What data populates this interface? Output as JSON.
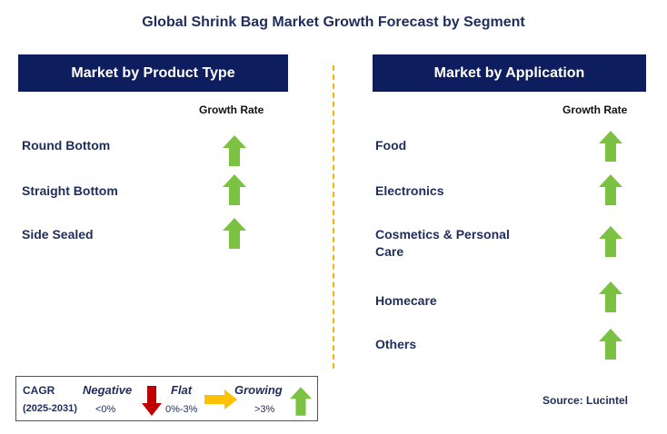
{
  "title": "Global Shrink Bag Market Growth Forecast by Segment",
  "colors": {
    "header_bg": "#0e1d5e",
    "growing": "#7cc242",
    "negative": "#c00000",
    "flat": "#ffc000",
    "divider": "#f2b705"
  },
  "left_panel": {
    "header": "Market by Product Type",
    "growth_rate_label": "Growth Rate",
    "items": [
      {
        "label": "Round Bottom",
        "trend": "growing"
      },
      {
        "label": "Straight Bottom",
        "trend": "growing"
      },
      {
        "label": "Side Sealed",
        "trend": "growing"
      }
    ]
  },
  "right_panel": {
    "header": "Market by Application",
    "growth_rate_label": "Growth Rate",
    "items": [
      {
        "label": "Food",
        "trend": "growing"
      },
      {
        "label": "Electronics",
        "trend": "growing"
      },
      {
        "label": "Cosmetics & Personal Care",
        "trend": "growing"
      },
      {
        "label": "Homecare",
        "trend": "growing"
      },
      {
        "label": "Others",
        "trend": "growing"
      }
    ]
  },
  "legend": {
    "cagr_label": "CAGR",
    "years": "(2025-2031)",
    "negative_label": "Negative",
    "negative_range": "<0%",
    "flat_label": "Flat",
    "flat_range": "0%-3%",
    "growing_label": "Growing",
    "growing_range": ">3%"
  },
  "source": "Source: Lucintel"
}
